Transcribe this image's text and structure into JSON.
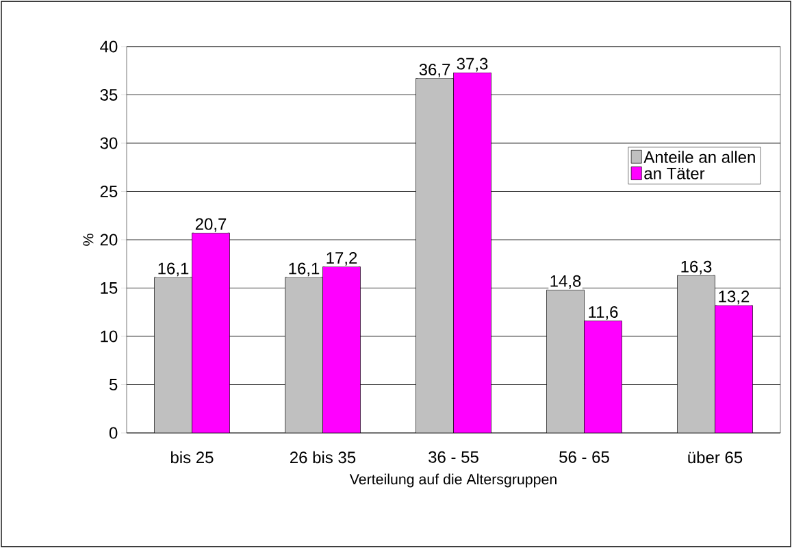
{
  "chart_data": {
    "type": "bar",
    "xlabel": "Verteilung auf die Altersgruppen",
    "ylabel": "%",
    "categories": [
      "bis 25",
      "26 bis 35",
      "36 - 55",
      "56 - 65",
      "über 65"
    ],
    "series": [
      {
        "name": "Anteile an allen",
        "color": "#c0c0c0",
        "values": [
          16.1,
          16.1,
          36.7,
          14.8,
          16.3
        ],
        "value_labels": [
          "16,1",
          "16,1",
          "36,7",
          "14,8",
          "16,3"
        ]
      },
      {
        "name": "an Täter",
        "color": "#ff00ff",
        "values": [
          20.7,
          17.2,
          37.3,
          11.6,
          13.2
        ],
        "value_labels": [
          "20,7",
          "17,2",
          "37,3",
          "11,6",
          "13,2"
        ]
      }
    ],
    "ylim": [
      0,
      40
    ],
    "yticks": [
      0,
      5,
      10,
      15,
      20,
      25,
      30,
      35,
      40
    ],
    "grid": "y",
    "legend": "right"
  }
}
